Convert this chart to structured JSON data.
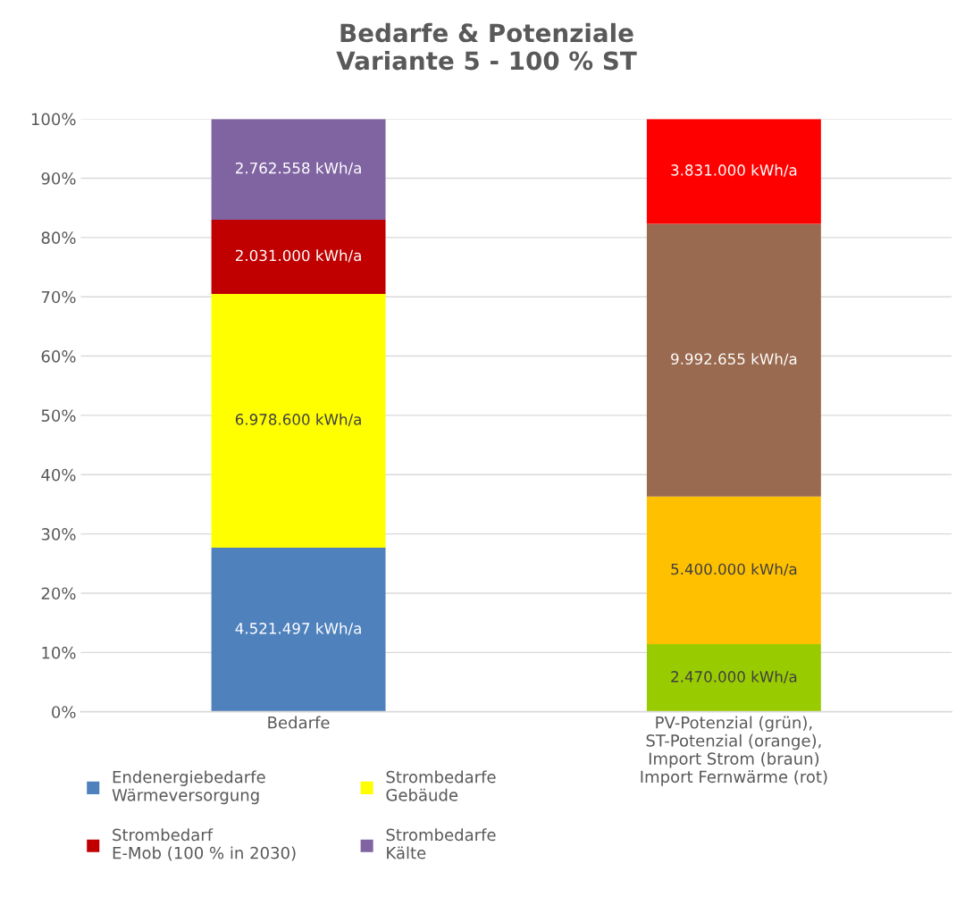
{
  "chart_data": {
    "type": "bar",
    "title": "Bedarfe & Potenziale\nVariante 5 - 100 % ST",
    "stacked": true,
    "categories": [
      "Bedarfe",
      "PV-Potenzial (grün),\nST-Potenzial (orange),\nImport Strom (braun)\nImport Fernwärme (rot)"
    ],
    "series": [
      {
        "name": "Endenergiebedarfe\nWärmeversorgung",
        "color": "#4f81bd",
        "values": [
          27.7,
          null
        ]
      },
      {
        "name": "Strombedarfe\nGebäude",
        "color": "#ffff00",
        "values": [
          42.8,
          null
        ]
      },
      {
        "name": "Strombedarf\nE-Mob (100 % in 2030)",
        "color": "#c00000",
        "values": [
          12.5,
          null
        ]
      },
      {
        "name": "Strombedarfe\nKälte",
        "color": "#8064a2",
        "values": [
          17.0,
          null
        ]
      },
      {
        "color": "#99cc00",
        "values": [
          null,
          11.4
        ]
      },
      {
        "color": "#ffc000",
        "values": [
          null,
          24.9
        ]
      },
      {
        "color": "#996a4f",
        "values": [
          null,
          46.0
        ]
      },
      {
        "color": "#ff0000",
        "values": [
          null,
          17.7
        ]
      }
    ],
    "annotations": [
      "4.521.497 kWh/a",
      "6.978.600 kWh/a",
      "2.031.000 kWh/a",
      "2.762.558 kWh/a",
      "2.470.000 kWh/a",
      "5.400.000 kWh/a",
      "9.992.655 kWh/a",
      "3.831.000 kWh/a"
    ],
    "ylim": [
      0,
      100
    ],
    "yticks": [
      {
        "value": 0,
        "label": "0%"
      },
      {
        "value": 10,
        "label": "10%"
      },
      {
        "value": 20,
        "label": "20%"
      },
      {
        "value": 30,
        "label": "30%"
      },
      {
        "value": 40,
        "label": "40%"
      },
      {
        "value": 50,
        "label": "50%"
      },
      {
        "value": 60,
        "label": "60%"
      },
      {
        "value": 70,
        "label": "70%"
      },
      {
        "value": 80,
        "label": "80%"
      },
      {
        "value": 90,
        "label": "90%"
      },
      {
        "value": 100,
        "label": "100%"
      }
    ],
    "grid": "y",
    "legend": "bottom left"
  }
}
